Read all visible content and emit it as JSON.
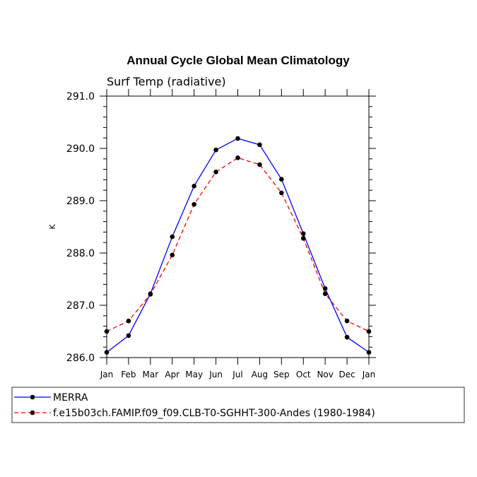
{
  "chart_data": {
    "type": "line",
    "title": "Annual Cycle Global Mean Climatology",
    "subtitle": "Surf Temp (radiative)",
    "xlabel": "",
    "ylabel": "K",
    "categories": [
      "Jan",
      "Feb",
      "Mar",
      "Apr",
      "May",
      "Jun",
      "Jul",
      "Aug",
      "Sep",
      "Oct",
      "Nov",
      "Dec",
      "Jan"
    ],
    "ylim": [
      286.0,
      291.0
    ],
    "yticks": [
      "286.0",
      "287.0",
      "288.0",
      "289.0",
      "290.0",
      "291.0"
    ],
    "series": [
      {
        "name": "MERRA",
        "color": "#0000ff",
        "dash": "solid",
        "values": [
          286.1,
          286.42,
          287.22,
          288.31,
          289.28,
          289.97,
          290.19,
          290.07,
          289.41,
          288.37,
          287.32,
          286.39,
          286.1
        ]
      },
      {
        "name": "f.e15b03ch.FAMIP.f09_f09.CLB-T0-SGHHT-300-Andes (1980-1984)",
        "color": "#ff0000",
        "dash": "dashed",
        "values": [
          286.5,
          286.7,
          287.21,
          287.96,
          288.93,
          289.55,
          289.82,
          289.69,
          289.15,
          288.28,
          287.22,
          286.7,
          286.5
        ]
      }
    ],
    "grid": false,
    "legend_position": "bottom-left"
  }
}
